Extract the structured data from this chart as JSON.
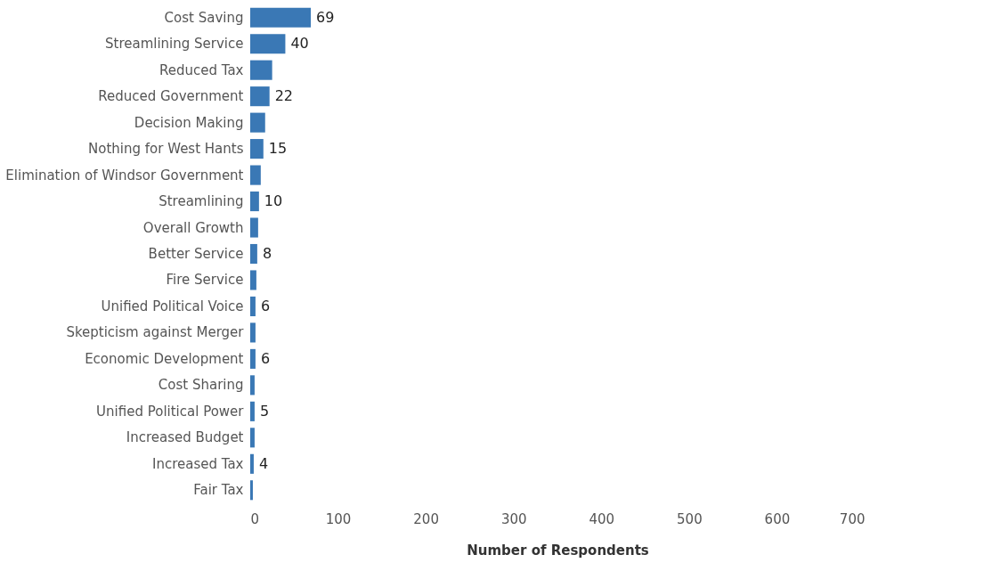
{
  "chart_data": {
    "type": "bar",
    "orientation": "horizontal",
    "xlabel": "Number of Respondents",
    "categories": [
      "Cost Saving",
      "Streamlining Service",
      "Reduced Tax",
      "Reduced Government",
      "Decision Making",
      "Nothing for West Hants",
      "Elimination of Windsor Government",
      "Streamlining",
      "Overall Growth",
      "Better Service",
      "Fire Service",
      "Unified Political Voice",
      "Skepticism against Merger",
      "Economic Development",
      "Cost Sharing",
      "Unified Political Power",
      "Increased Budget",
      "Increased Tax",
      "Fair Tax"
    ],
    "values": [
      69,
      40,
      25,
      22,
      17,
      15,
      12,
      10,
      9,
      8,
      7,
      6,
      6,
      6,
      5,
      5,
      5,
      4,
      3
    ],
    "value_labels": [
      "69",
      "40",
      null,
      "22",
      null,
      "15",
      null,
      "10",
      null,
      "8",
      null,
      "6",
      null,
      "6",
      null,
      "5",
      null,
      "4",
      null
    ],
    "color": "#3a78b5",
    "xlim": [
      0,
      700
    ],
    "xticks": [
      0,
      100,
      200,
      300,
      400,
      500,
      600,
      700
    ],
    "grid": false
  }
}
